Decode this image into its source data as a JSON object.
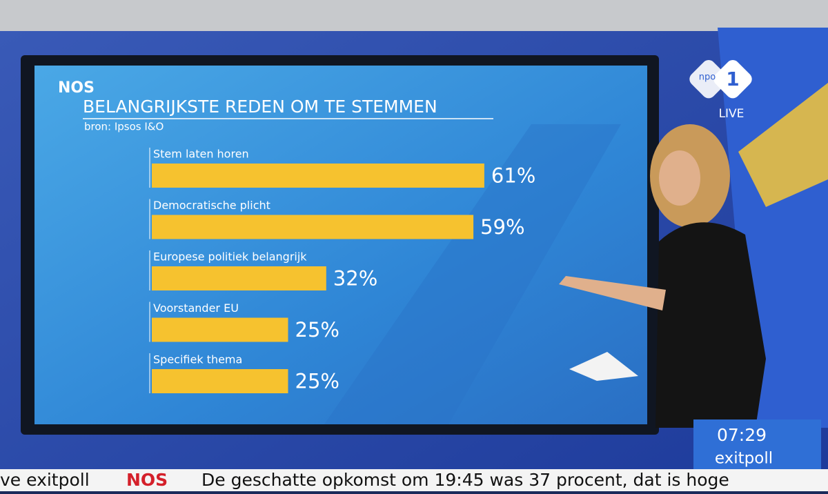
{
  "chart_data": {
    "type": "bar",
    "orientation": "horizontal",
    "logo": "NOS",
    "title": "BELANGRIJKSTE REDEN OM TE STEMMEN",
    "subtitle": "bron: Ipsos I&O",
    "categories": [
      "Stem laten horen",
      "Democratische plicht",
      "Europese politiek belangrijk",
      "Voorstander EU",
      "Specifiek thema"
    ],
    "values": [
      61,
      59,
      32,
      25,
      25
    ],
    "value_labels": [
      "61%",
      "59%",
      "32%",
      "25%",
      "25%"
    ],
    "color": "#f6c22f"
  },
  "broadcast": {
    "channel": "npo",
    "channel_number": "1",
    "live": "LIVE",
    "clock": "07:29",
    "program": "exitpoll",
    "ticker_left": "ve exitpoll",
    "ticker_logo": "NOS",
    "ticker_text": "De geschatte opkomst om 19:45 was 37 procent, dat is hoge"
  }
}
